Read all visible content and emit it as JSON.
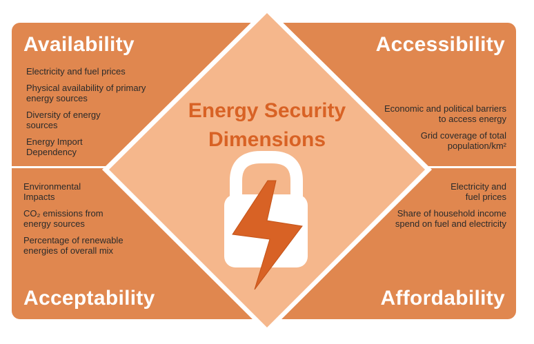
{
  "center": {
    "title_line1": "Energy Security",
    "title_line2": "Dimensions"
  },
  "quadrants": {
    "availability": {
      "title": "Availability",
      "items": [
        "Electricity and fuel prices",
        "Physical availability of primary energy sources",
        "Diversity of energy sources",
        "Energy Import Dependency"
      ]
    },
    "accessibility": {
      "title": "Accessibility",
      "items": [
        "Economic and political barriers to access energy",
        "Grid coverage of total population/km²"
      ]
    },
    "acceptability": {
      "title": "Acceptability",
      "items": [
        "Environmental Impacts",
        "CO₂ emissions from energy sources",
        "Percentage of renewable energies of overall mix"
      ]
    },
    "affordability": {
      "title": "Affordability",
      "items": [
        "Electricity and fuel prices",
        "Share of household income spend on fuel and electricity"
      ]
    }
  },
  "colors": {
    "panel": "#e0874f",
    "diamond": "#f5b78c",
    "accent": "#d86225",
    "text": "#2a2a2a"
  },
  "icons": {
    "center": "padlock-lightning-icon"
  }
}
